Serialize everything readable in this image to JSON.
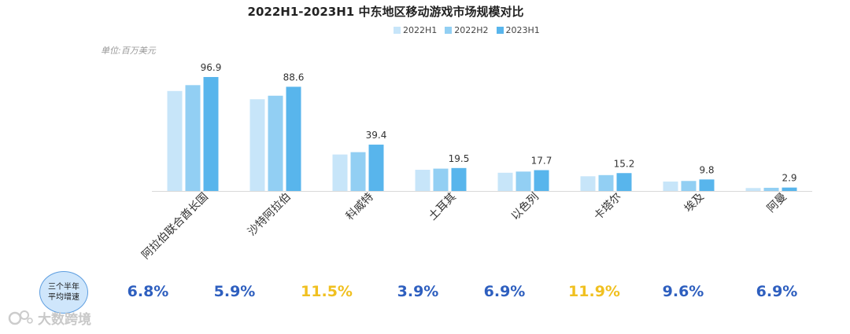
{
  "chart_data": {
    "type": "bar",
    "title": "2022H1-2023H1  中东地区移动游戏市场规模对比",
    "unit_label": "单位:百万美元",
    "categories": [
      "阿拉伯联合酋长国",
      "沙特阿拉伯",
      "科威特",
      "土耳其",
      "以色列",
      "卡塔尔",
      "埃及",
      "阿曼"
    ],
    "series": [
      {
        "name": "2022H1",
        "color": "#c7e5f9",
        "values": [
          85,
          78,
          31,
          18,
          15.5,
          12.5,
          8,
          2.5
        ]
      },
      {
        "name": "2022H2",
        "color": "#92cff3",
        "values": [
          90,
          81,
          33,
          19,
          16.5,
          13.5,
          8.5,
          2.7
        ]
      },
      {
        "name": "2023H1",
        "color": "#58b5ec",
        "values": [
          96.9,
          88.6,
          39.4,
          19.5,
          17.7,
          15.2,
          9.8,
          2.9
        ]
      }
    ],
    "data_labels": [
      "96.9",
      "88.6",
      "39.4",
      "19.5",
      "17.7",
      "15.2",
      "9.8",
      "2.9"
    ],
    "legend_position": "top",
    "ylim": [
      0,
      100
    ],
    "grid": false,
    "cagr_label_line1": "三个半年",
    "cagr_label_line2": "平均增速",
    "growth_rates": [
      {
        "text": "6.8%",
        "color": "#2e5fbf"
      },
      {
        "text": "5.9%",
        "color": "#2e5fbf"
      },
      {
        "text": "11.5%",
        "color": "#f0c020"
      },
      {
        "text": "3.9%",
        "color": "#2e5fbf"
      },
      {
        "text": "6.9%",
        "color": "#2e5fbf"
      },
      {
        "text": "11.9%",
        "color": "#f0c020"
      },
      {
        "text": "9.6%",
        "color": "#2e5fbf"
      },
      {
        "text": "6.9%",
        "color": "#2e5fbf"
      }
    ]
  },
  "watermark": {
    "icon": "bubble-logo-icon",
    "text": "大数跨境"
  }
}
